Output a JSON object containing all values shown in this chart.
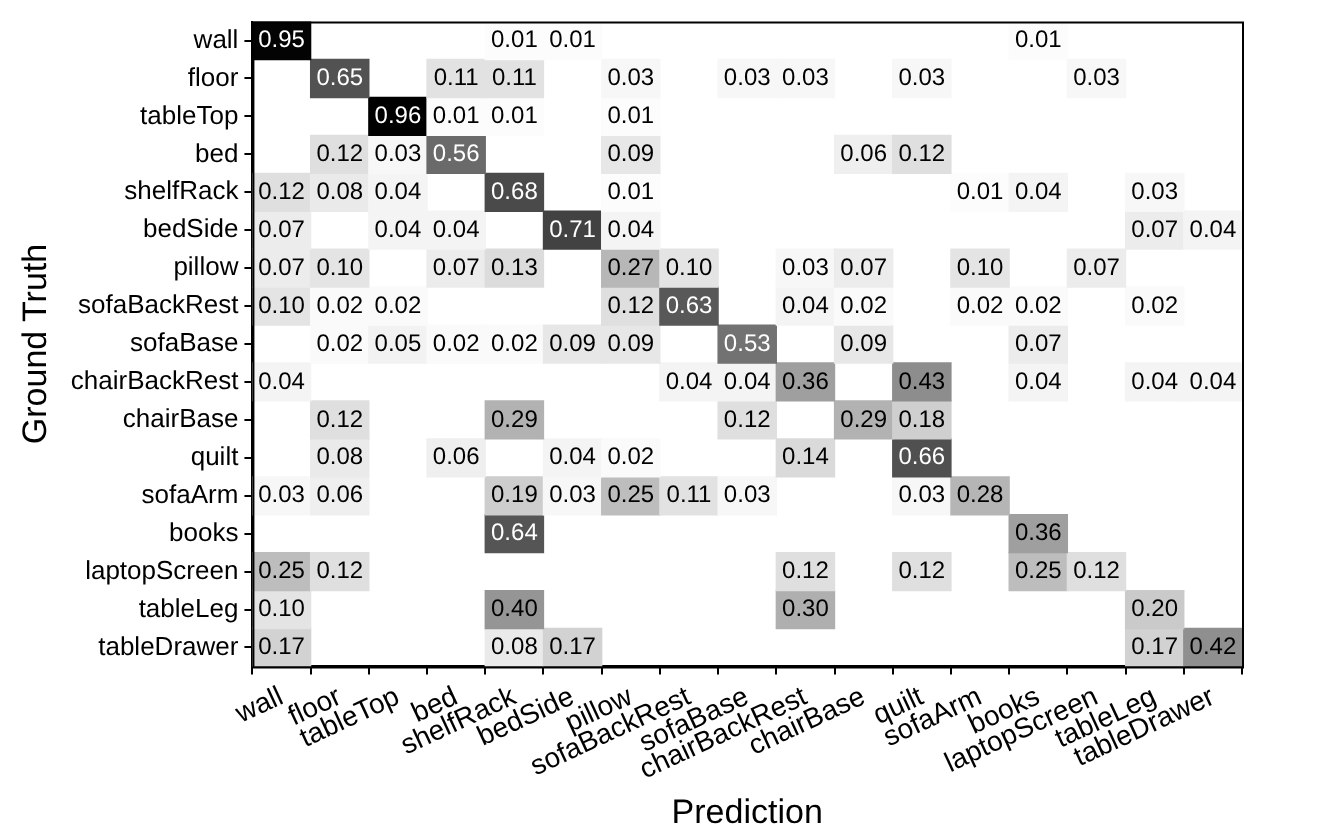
{
  "chart_data": {
    "type": "heatmap",
    "xlabel": "Prediction",
    "ylabel": "Ground Truth",
    "data_labels": true,
    "grid": false,
    "categories": [
      "wall",
      "floor",
      "tableTop",
      "bed",
      "shelfRack",
      "bedSide",
      "pillow",
      "sofaBackRest",
      "sofaBase",
      "chairBackRest",
      "chairBase",
      "quilt",
      "sofaArm",
      "books",
      "laptopScreen",
      "tableLeg",
      "tableDrawer"
    ],
    "y_categories": [
      "wall",
      "floor",
      "tableTop",
      "bed",
      "shelfRack",
      "bedSide",
      "pillow",
      "sofaBackRest",
      "sofaBase",
      "chairBackRest",
      "chairBase",
      "quilt",
      "sofaArm",
      "books",
      "laptopScreen",
      "tableLeg",
      "tableDrawer"
    ],
    "cells": [
      [
        0.95,
        null,
        null,
        null,
        0.01,
        0.01,
        null,
        null,
        null,
        null,
        null,
        null,
        null,
        0.01,
        null,
        null,
        null
      ],
      [
        null,
        0.65,
        null,
        0.11,
        0.11,
        null,
        0.03,
        null,
        0.03,
        0.03,
        null,
        0.03,
        null,
        null,
        0.03,
        null,
        null
      ],
      [
        null,
        null,
        0.96,
        0.01,
        0.01,
        null,
        0.01,
        null,
        null,
        null,
        null,
        null,
        null,
        null,
        null,
        null,
        null
      ],
      [
        null,
        0.12,
        0.03,
        0.56,
        null,
        null,
        0.09,
        null,
        null,
        null,
        0.06,
        0.12,
        null,
        null,
        null,
        null,
        null
      ],
      [
        0.12,
        0.08,
        0.04,
        null,
        0.68,
        null,
        0.01,
        null,
        null,
        null,
        null,
        null,
        0.01,
        0.04,
        null,
        0.03,
        null
      ],
      [
        0.07,
        null,
        0.04,
        0.04,
        null,
        0.71,
        0.04,
        null,
        null,
        null,
        null,
        null,
        null,
        null,
        null,
        0.07,
        0.04
      ],
      [
        0.07,
        0.1,
        null,
        0.07,
        0.13,
        null,
        0.27,
        0.1,
        null,
        0.03,
        0.07,
        null,
        0.1,
        null,
        0.07,
        null,
        null
      ],
      [
        0.1,
        0.02,
        0.02,
        null,
        null,
        null,
        0.12,
        0.63,
        null,
        0.04,
        0.02,
        null,
        0.02,
        0.02,
        null,
        0.02,
        null
      ],
      [
        null,
        0.02,
        0.05,
        0.02,
        0.02,
        0.09,
        0.09,
        null,
        0.53,
        null,
        0.09,
        null,
        null,
        0.07,
        null,
        null,
        null
      ],
      [
        0.04,
        null,
        null,
        null,
        null,
        null,
        null,
        0.04,
        0.04,
        0.36,
        null,
        0.43,
        null,
        0.04,
        null,
        0.04,
        0.04
      ],
      [
        null,
        0.12,
        null,
        null,
        0.29,
        null,
        null,
        null,
        0.12,
        null,
        0.29,
        0.18,
        null,
        null,
        null,
        null,
        null
      ],
      [
        null,
        0.08,
        null,
        0.06,
        null,
        0.04,
        0.02,
        null,
        null,
        0.14,
        null,
        0.66,
        null,
        null,
        null,
        null,
        null
      ],
      [
        0.03,
        0.06,
        null,
        null,
        0.19,
        0.03,
        0.25,
        0.11,
        0.03,
        null,
        null,
        0.03,
        0.28,
        null,
        null,
        null,
        null
      ],
      [
        null,
        null,
        null,
        null,
        0.64,
        null,
        null,
        null,
        null,
        null,
        null,
        null,
        null,
        0.36,
        null,
        null,
        null
      ],
      [
        0.25,
        0.12,
        null,
        null,
        null,
        null,
        null,
        null,
        null,
        0.12,
        null,
        0.12,
        null,
        0.25,
        0.12,
        null,
        null
      ],
      [
        0.1,
        null,
        null,
        null,
        0.4,
        null,
        null,
        null,
        null,
        0.3,
        null,
        null,
        null,
        null,
        null,
        0.2,
        null
      ],
      [
        0.17,
        null,
        null,
        null,
        0.08,
        0.17,
        null,
        null,
        null,
        null,
        null,
        null,
        null,
        null,
        null,
        0.17,
        0.42
      ]
    ],
    "cell_labels": [
      [
        "0.95",
        null,
        null,
        null,
        "0.01",
        "0.01",
        null,
        null,
        null,
        null,
        null,
        null,
        null,
        "0.01",
        null,
        null,
        null
      ],
      [
        null,
        "0.65",
        null,
        "0.11",
        "0.11",
        null,
        "0.03",
        null,
        "0.03",
        "0.03",
        null,
        "0.03",
        null,
        null,
        "0.03",
        null,
        null
      ],
      [
        null,
        null,
        "0.96",
        "0.01",
        "0.01",
        null,
        "0.01",
        null,
        null,
        null,
        null,
        null,
        null,
        null,
        null,
        null,
        null
      ],
      [
        null,
        "0.12",
        "0.03",
        "0.56",
        null,
        null,
        "0.09",
        null,
        null,
        null,
        "0.06",
        "0.12",
        null,
        null,
        null,
        null,
        null
      ],
      [
        "0.12",
        "0.08",
        "0.04",
        null,
        "0.68",
        null,
        "0.01",
        null,
        null,
        null,
        null,
        null,
        "0.01",
        "0.04",
        null,
        "0.03",
        null
      ],
      [
        "0.07",
        null,
        "0.04",
        "0.04",
        null,
        "0.71",
        "0.04",
        null,
        null,
        null,
        null,
        null,
        null,
        null,
        null,
        "0.07",
        "0.04"
      ],
      [
        "0.07",
        "0.10",
        null,
        "0.07",
        "0.13",
        null,
        "0.27",
        "0.10",
        null,
        "0.03",
        "0.07",
        null,
        "0.10",
        null,
        "0.07",
        null,
        null
      ],
      [
        "0.10",
        "0.02",
        "0.02",
        null,
        null,
        null,
        "0.12",
        "0.63",
        null,
        "0.04",
        "0.02",
        null,
        "0.02",
        "0.02",
        null,
        "0.02",
        null
      ],
      [
        null,
        "0.02",
        "0.05",
        "0.02",
        "0.02",
        "0.09",
        "0.09",
        null,
        "0.53",
        null,
        "0.09",
        null,
        null,
        "0.07",
        null,
        null,
        null
      ],
      [
        "0.04",
        null,
        null,
        null,
        null,
        null,
        null,
        "0.04",
        "0.04",
        "0.36",
        null,
        "0.43",
        null,
        "0.04",
        null,
        "0.04",
        "0.04"
      ],
      [
        null,
        "0.12",
        null,
        null,
        "0.29",
        null,
        null,
        null,
        "0.12",
        null,
        "0.29",
        "0.18",
        null,
        null,
        null,
        null,
        null
      ],
      [
        null,
        "0.08",
        null,
        "0.06",
        null,
        "0.04",
        "0.02",
        null,
        null,
        "0.14",
        null,
        "0.66",
        null,
        null,
        null,
        null,
        null
      ],
      [
        "0.03",
        "0.06",
        null,
        null,
        "0.19",
        "0.03",
        "0.25",
        "0.11",
        "0.03",
        null,
        null,
        "0.03",
        "0.28",
        null,
        null,
        null,
        null
      ],
      [
        null,
        null,
        null,
        null,
        "0.64",
        null,
        null,
        null,
        null,
        null,
        null,
        null,
        null,
        "0.36",
        null,
        null,
        null
      ],
      [
        "0.25",
        "0.12",
        null,
        null,
        null,
        null,
        null,
        null,
        null,
        "0.12",
        null,
        "0.12",
        null,
        "0.25",
        "0.12",
        null,
        null
      ],
      [
        "0.10",
        null,
        null,
        null,
        "0.40",
        null,
        null,
        null,
        null,
        "0.30",
        null,
        null,
        null,
        null,
        null,
        "0.20",
        null
      ],
      [
        "0.17",
        null,
        null,
        null,
        "0.08",
        "0.17",
        null,
        null,
        null,
        null,
        null,
        null,
        null,
        null,
        null,
        "0.17",
        "0.42"
      ]
    ]
  }
}
